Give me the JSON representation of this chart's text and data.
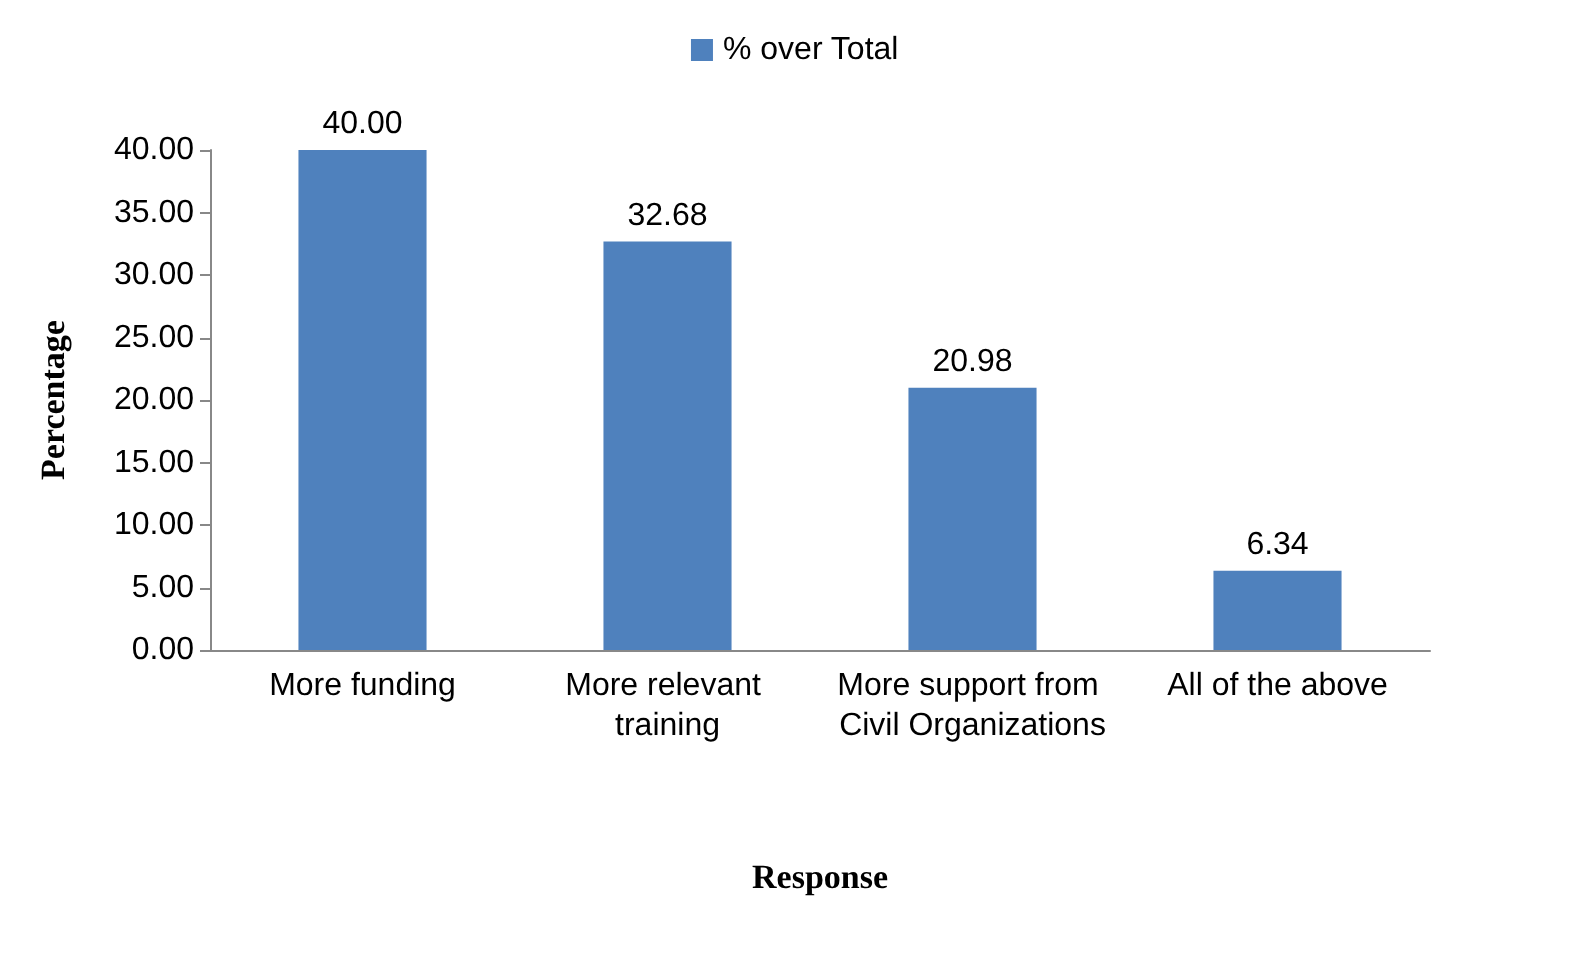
{
  "chart_data": {
    "type": "bar",
    "xlabel": "Response",
    "ylabel": "Percentage",
    "categories": [
      "More funding",
      "More relevant training",
      "More support from Civil Organizations",
      "All of the above"
    ],
    "series": [
      {
        "name": "% over Total",
        "color": "#4f81bd",
        "values": [
          40.0,
          32.68,
          20.98,
          6.34
        ],
        "value_labels": [
          "40.00",
          "32.68",
          "20.98",
          "6.34"
        ]
      }
    ],
    "ylim": [
      0,
      40
    ],
    "yticks": [
      {
        "value": 0,
        "label": "0.00"
      },
      {
        "value": 5,
        "label": "5.00"
      },
      {
        "value": 10,
        "label": "10.00"
      },
      {
        "value": 15,
        "label": "15.00"
      },
      {
        "value": 20,
        "label": "20.00"
      },
      {
        "value": 25,
        "label": "25.00"
      },
      {
        "value": 30,
        "label": "30.00"
      },
      {
        "value": 35,
        "label": "35.00"
      },
      {
        "value": 40,
        "label": "40.00"
      }
    ],
    "grid": false,
    "legend": "top"
  }
}
